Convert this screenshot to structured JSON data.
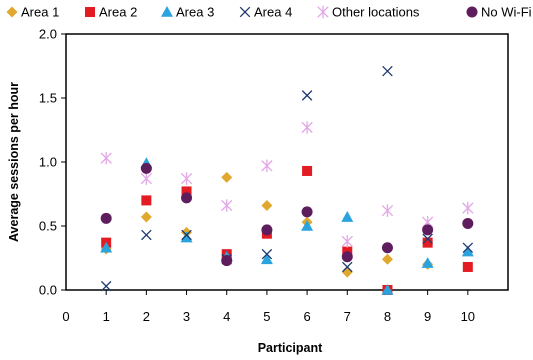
{
  "chart_data": {
    "type": "scatter",
    "title": "",
    "xlabel": "Participant",
    "ylabel": "Average sessions per hour",
    "xlim": [
      0,
      11
    ],
    "ylim": [
      0,
      2.0
    ],
    "x_ticks": [
      "0",
      "1",
      "2",
      "3",
      "4",
      "5",
      "6",
      "7",
      "8",
      "9",
      "10"
    ],
    "y_ticks": [
      "0.0",
      "0.5",
      "1.0",
      "1.5",
      "2.0"
    ],
    "legend_position": "top",
    "series": [
      {
        "name": "Area 1",
        "marker": "diamond",
        "color": "#E0A82E",
        "x": [
          1,
          2,
          3,
          4,
          5,
          6,
          7,
          8,
          9,
          10
        ],
        "y": [
          0.32,
          0.57,
          0.45,
          0.88,
          0.66,
          0.53,
          0.14,
          0.24,
          0.2,
          null
        ]
      },
      {
        "name": "Area 2",
        "marker": "square",
        "color": "#E31B23",
        "x": [
          1,
          2,
          3,
          4,
          5,
          6,
          7,
          8,
          9,
          10
        ],
        "y": [
          0.37,
          0.7,
          0.77,
          0.28,
          0.44,
          0.93,
          0.3,
          0.0,
          0.37,
          0.18
        ]
      },
      {
        "name": "Area 3",
        "marker": "triangle",
        "color": "#2BA4DD",
        "x": [
          1,
          2,
          3,
          4,
          5,
          6,
          7,
          8,
          9,
          10
        ],
        "y": [
          0.33,
          0.99,
          0.41,
          0.26,
          0.24,
          0.5,
          0.57,
          0.0,
          0.21,
          0.3
        ]
      },
      {
        "name": "Area 4",
        "marker": "x",
        "color": "#1F3A6E",
        "x": [
          1,
          2,
          3,
          4,
          5,
          6,
          7,
          8,
          9,
          10
        ],
        "y": [
          0.03,
          0.43,
          0.43,
          0.24,
          0.28,
          1.52,
          0.18,
          1.71,
          0.4,
          0.33
        ]
      },
      {
        "name": "Other locations",
        "marker": "asterisk",
        "color": "#E3A6E6",
        "x": [
          1,
          2,
          3,
          4,
          5,
          6,
          7,
          8,
          9,
          10
        ],
        "y": [
          1.03,
          0.87,
          0.87,
          0.66,
          0.97,
          1.27,
          0.38,
          0.62,
          0.53,
          0.64
        ]
      },
      {
        "name": "No Wi-Fi",
        "marker": "circle",
        "color": "#5E1E5E",
        "x": [
          1,
          2,
          3,
          4,
          5,
          6,
          7,
          8,
          9,
          10
        ],
        "y": [
          0.56,
          0.95,
          0.72,
          0.23,
          0.47,
          0.61,
          0.26,
          0.33,
          0.47,
          0.52
        ]
      }
    ]
  }
}
